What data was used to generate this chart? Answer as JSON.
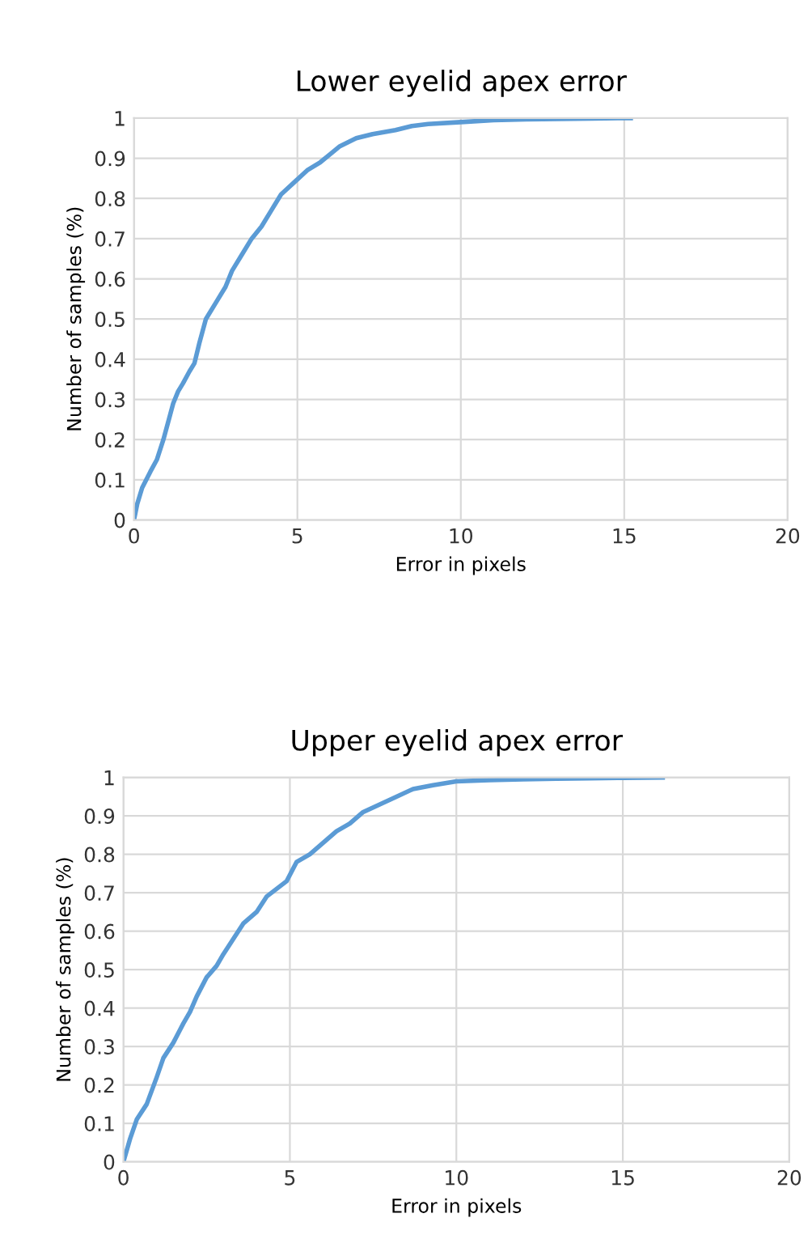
{
  "chart_data": [
    {
      "type": "line",
      "title": "Lower eyelid apex error",
      "xlabel": "Error in pixels",
      "ylabel": "Number of samples (%)",
      "xlim": [
        0,
        20
      ],
      "xticks": [
        0,
        5,
        10,
        15,
        20
      ],
      "ylim": [
        0,
        1
      ],
      "yticks": [
        0,
        0.1,
        0.2,
        0.3,
        0.4,
        0.5,
        0.6,
        0.7,
        0.8,
        0.9,
        1
      ],
      "grid": true,
      "marker": "none",
      "line_style": "solid",
      "series": [
        {
          "color": "#5b9bd5",
          "x": [
            0,
            0.1,
            0.25,
            0.5,
            0.7,
            0.9,
            1.1,
            1.2,
            1.35,
            1.5,
            1.7,
            1.85,
            2.0,
            2.2,
            2.5,
            2.8,
            3.0,
            3.3,
            3.6,
            3.9,
            4.2,
            4.5,
            4.9,
            5.3,
            5.7,
            6.0,
            6.3,
            6.8,
            7.3,
            8,
            8.5,
            9,
            10,
            11,
            12,
            13,
            14,
            15.2
          ],
          "values": [
            0,
            0.04,
            0.08,
            0.12,
            0.15,
            0.2,
            0.26,
            0.29,
            0.32,
            0.34,
            0.37,
            0.39,
            0.44,
            0.5,
            0.54,
            0.58,
            0.62,
            0.66,
            0.7,
            0.73,
            0.77,
            0.81,
            0.84,
            0.87,
            0.89,
            0.91,
            0.93,
            0.95,
            0.96,
            0.97,
            0.98,
            0.985,
            0.99,
            0.995,
            0.997,
            0.998,
            0.999,
            1
          ]
        }
      ]
    },
    {
      "type": "line",
      "title": "Upper eyelid apex error",
      "xlabel": "Error in pixels",
      "ylabel": "Number of samples (%)",
      "xlim": [
        0,
        20
      ],
      "xticks": [
        0,
        5,
        10,
        15,
        20
      ],
      "ylim": [
        0,
        1
      ],
      "yticks": [
        0,
        0.1,
        0.2,
        0.3,
        0.4,
        0.5,
        0.6,
        0.7,
        0.8,
        0.9,
        1
      ],
      "grid": true,
      "marker": "none",
      "line_style": "solid",
      "series": [
        {
          "color": "#5b9bd5",
          "x": [
            0,
            0.2,
            0.4,
            0.7,
            1.0,
            1.2,
            1.5,
            1.8,
            2.0,
            2.2,
            2.5,
            2.8,
            3.0,
            3.3,
            3.6,
            4.0,
            4.3,
            4.6,
            4.9,
            5.2,
            5.6,
            6.0,
            6.4,
            6.8,
            7.2,
            7.7,
            8.2,
            8.7,
            9.3,
            10,
            11,
            12,
            13,
            14,
            15,
            16.2
          ],
          "values": [
            0,
            0.06,
            0.11,
            0.15,
            0.22,
            0.27,
            0.31,
            0.36,
            0.39,
            0.43,
            0.48,
            0.51,
            0.54,
            0.58,
            0.62,
            0.65,
            0.69,
            0.71,
            0.73,
            0.78,
            0.8,
            0.83,
            0.86,
            0.88,
            0.91,
            0.93,
            0.95,
            0.97,
            0.98,
            0.99,
            0.993,
            0.995,
            0.997,
            0.998,
            0.999,
            1
          ]
        }
      ]
    }
  ]
}
